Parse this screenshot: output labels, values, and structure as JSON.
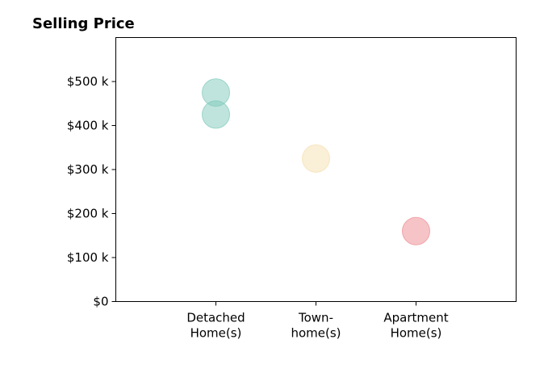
{
  "chart_data": {
    "type": "scatter",
    "title": "Selling Price",
    "xlabel": "",
    "ylabel": "",
    "categories": [
      [
        "Detached",
        "Home(s)"
      ],
      [
        "Town-",
        "home(s)"
      ],
      [
        "Apartment",
        "Home(s)"
      ]
    ],
    "ylim": [
      0,
      600000
    ],
    "yticks": [
      0,
      100000,
      200000,
      300000,
      400000,
      500000
    ],
    "ytick_labels": [
      "$0",
      "$100 k",
      "$200 k",
      "$300 k",
      "$400 k",
      "$500 k"
    ],
    "grid": false,
    "points": [
      {
        "category": 0,
        "y": 475000,
        "color": "#7fc9bb"
      },
      {
        "category": 0,
        "y": 425000,
        "color": "#7fc9bb"
      },
      {
        "category": 1,
        "y": 325000,
        "color": "#f5dfb0"
      },
      {
        "category": 2,
        "y": 160000,
        "color": "#ee8a90"
      }
    ]
  }
}
